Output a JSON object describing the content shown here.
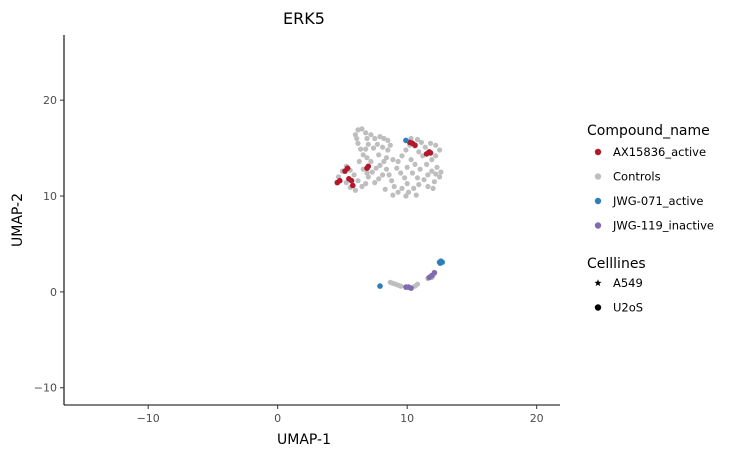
{
  "chart_data": {
    "type": "scatter",
    "title": "ERK5",
    "xlabel": "UMAP-1",
    "ylabel": "UMAP-2",
    "xlim": [
      -16.5,
      21.8
    ],
    "ylim": [
      -11.8,
      26.8
    ],
    "xticks": [
      -10,
      0,
      10,
      20
    ],
    "yticks": [
      -10,
      0,
      10,
      20
    ],
    "xtick_labels": [
      "−10",
      "0",
      "10",
      "20"
    ],
    "ytick_labels": [
      "−10",
      "0",
      "10",
      "20"
    ],
    "grid": false,
    "legend_position": "right",
    "legend_color": {
      "title": "Compound_name",
      "entries": [
        {
          "label": "AX15836_active",
          "color": "#B2182B"
        },
        {
          "label": "Controls",
          "color": "#BEBEBE"
        },
        {
          "label": "JWG-071_active",
          "color": "#2C7FB8"
        },
        {
          "label": "JWG-119_inactive",
          "color": "#7E6BB0"
        }
      ]
    },
    "legend_shape": {
      "title": "Celllines",
      "entries": [
        {
          "label": "A549",
          "shape": "star"
        },
        {
          "label": "U2oS",
          "shape": "circle"
        }
      ]
    },
    "series": [
      {
        "name": "Controls",
        "color": "#BEBEBE",
        "points": [
          [
            4.7,
            12.0
          ],
          [
            5.0,
            12.6
          ],
          [
            5.3,
            13.1
          ],
          [
            5.6,
            12.7
          ],
          [
            5.9,
            12.2
          ],
          [
            6.2,
            11.6
          ],
          [
            6.5,
            11.0
          ],
          [
            6.0,
            10.6
          ],
          [
            5.6,
            10.9
          ],
          [
            5.3,
            11.4
          ],
          [
            6.8,
            11.3
          ],
          [
            7.0,
            12.0
          ],
          [
            7.3,
            12.5
          ],
          [
            7.6,
            12.9
          ],
          [
            7.9,
            13.2
          ],
          [
            8.2,
            13.6
          ],
          [
            8.4,
            12.8
          ],
          [
            8.1,
            12.2
          ],
          [
            7.8,
            11.8
          ],
          [
            7.5,
            11.4
          ],
          [
            7.2,
            13.6
          ],
          [
            6.9,
            14.0
          ],
          [
            6.6,
            14.3
          ],
          [
            6.3,
            13.6
          ],
          [
            6.6,
            12.8
          ],
          [
            6.9,
            12.4
          ],
          [
            6.0,
            16.4
          ],
          [
            6.2,
            16.9
          ],
          [
            6.5,
            17.0
          ],
          [
            6.8,
            16.6
          ],
          [
            6.9,
            16.0
          ],
          [
            7.0,
            15.4
          ],
          [
            6.8,
            14.9
          ],
          [
            6.4,
            14.9
          ],
          [
            6.2,
            15.5
          ],
          [
            6.1,
            16.0
          ],
          [
            7.2,
            16.4
          ],
          [
            7.5,
            16.0
          ],
          [
            7.9,
            16.2
          ],
          [
            8.2,
            16.0
          ],
          [
            8.5,
            15.8
          ],
          [
            8.7,
            15.3
          ],
          [
            8.5,
            14.8
          ],
          [
            8.1,
            15.1
          ],
          [
            7.7,
            15.4
          ],
          [
            7.4,
            15.0
          ],
          [
            7.8,
            14.3
          ],
          [
            8.4,
            14.0
          ],
          [
            8.9,
            13.8
          ],
          [
            9.3,
            13.6
          ],
          [
            9.6,
            14.2
          ],
          [
            9.9,
            14.8
          ],
          [
            10.2,
            15.3
          ],
          [
            10.6,
            15.2
          ],
          [
            10.9,
            14.6
          ],
          [
            11.2,
            14.2
          ],
          [
            9.2,
            12.9
          ],
          [
            9.5,
            12.4
          ],
          [
            9.8,
            11.9
          ],
          [
            10.0,
            11.3
          ],
          [
            9.6,
            10.8
          ],
          [
            9.3,
            10.4
          ],
          [
            9.0,
            11.0
          ],
          [
            8.8,
            11.6
          ],
          [
            8.6,
            12.2
          ],
          [
            10.1,
            10.4
          ],
          [
            10.5,
            10.8
          ],
          [
            10.9,
            11.2
          ],
          [
            11.3,
            11.7
          ],
          [
            11.6,
            12.2
          ],
          [
            11.9,
            12.6
          ],
          [
            12.2,
            12.3
          ],
          [
            12.5,
            12.0
          ],
          [
            12.1,
            11.5
          ],
          [
            11.6,
            11.0
          ],
          [
            11.0,
            12.8
          ],
          [
            10.6,
            13.3
          ],
          [
            10.3,
            13.8
          ],
          [
            10.0,
            13.0
          ],
          [
            10.4,
            12.4
          ],
          [
            10.8,
            11.9
          ],
          [
            11.5,
            13.3
          ],
          [
            11.9,
            13.8
          ],
          [
            12.2,
            14.2
          ],
          [
            12.5,
            14.8
          ],
          [
            12.2,
            15.3
          ],
          [
            11.8,
            15.5
          ],
          [
            11.4,
            15.1
          ],
          [
            11.1,
            15.6
          ],
          [
            10.8,
            15.9
          ],
          [
            10.3,
            16.0
          ],
          [
            12.3,
            13.0
          ],
          [
            12.6,
            12.5
          ],
          [
            12.0,
            10.8
          ],
          [
            10.7,
            10.1
          ],
          [
            9.9,
            10.0
          ],
          [
            8.9,
            10.1
          ],
          [
            8.3,
            10.7
          ],
          [
            8.9,
            0.9
          ],
          [
            9.1,
            0.8
          ],
          [
            9.3,
            0.7
          ],
          [
            8.7,
            1.0
          ],
          [
            9.5,
            0.6
          ],
          [
            10.0,
            0.5
          ],
          [
            10.6,
            0.6
          ],
          [
            10.8,
            0.8
          ],
          [
            11.6,
            1.4
          ],
          [
            11.8,
            1.6
          ],
          [
            12.0,
            1.7
          ],
          [
            11.9,
            1.5
          ]
        ]
      },
      {
        "name": "AX15836_active",
        "color": "#B2182B",
        "points": [
          [
            4.6,
            11.4
          ],
          [
            4.8,
            11.6
          ],
          [
            5.2,
            12.6
          ],
          [
            5.4,
            12.9
          ],
          [
            5.5,
            11.8
          ],
          [
            5.7,
            11.6
          ],
          [
            5.8,
            11.1
          ],
          [
            6.9,
            12.9
          ],
          [
            7.0,
            13.1
          ],
          [
            10.2,
            15.6
          ],
          [
            10.4,
            15.5
          ],
          [
            10.6,
            15.3
          ],
          [
            11.5,
            14.4
          ],
          [
            11.7,
            14.6
          ],
          [
            11.8,
            14.5
          ]
        ]
      },
      {
        "name": "JWG-071_active",
        "color": "#2C7FB8",
        "points": [
          [
            7.9,
            0.6
          ],
          [
            9.9,
            15.8
          ],
          [
            12.5,
            3.1
          ],
          [
            12.6,
            3.2
          ],
          [
            12.7,
            3.1
          ],
          [
            12.55,
            3.0
          ]
        ]
      },
      {
        "name": "JWG-119_inactive",
        "color": "#7E6BB0",
        "points": [
          [
            9.9,
            0.5
          ],
          [
            10.1,
            0.5
          ],
          [
            10.3,
            0.4
          ],
          [
            11.7,
            1.5
          ],
          [
            11.9,
            1.7
          ],
          [
            12.1,
            2.0
          ]
        ]
      }
    ]
  }
}
